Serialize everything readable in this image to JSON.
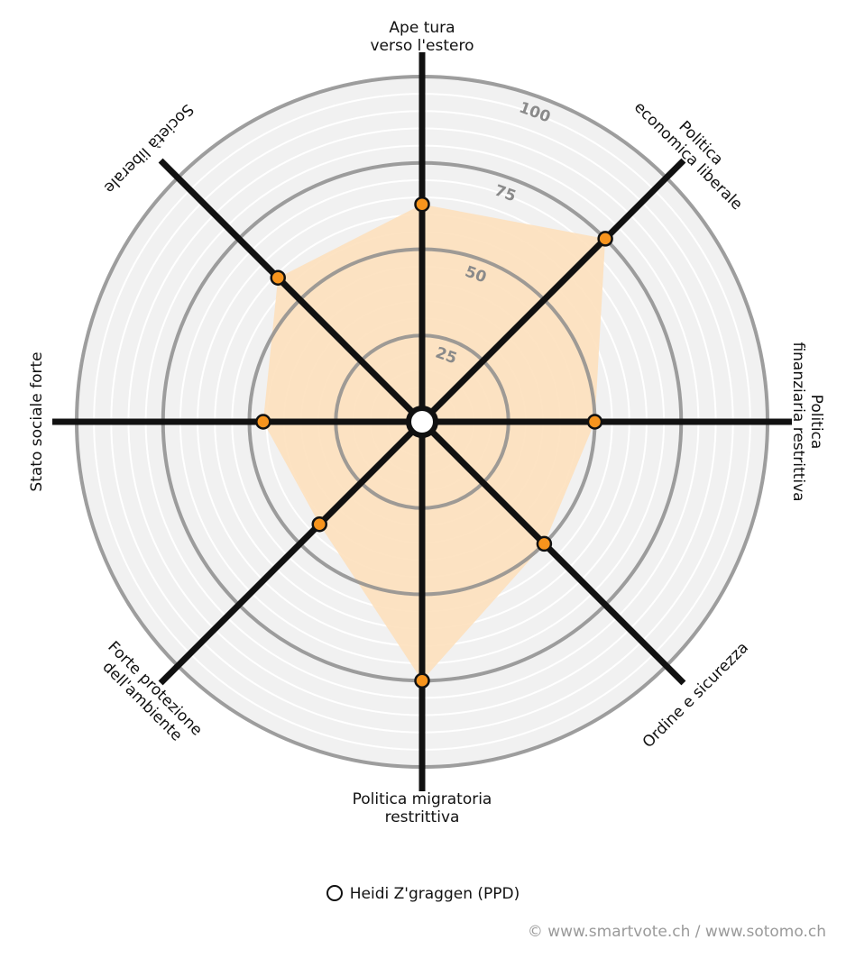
{
  "chart_data": {
    "type": "radar",
    "axes": [
      "Ape tura\nverso l'estero",
      "Politica\neconomica liberale",
      "Politica\nfinanziaria restrittiva",
      "Ordine e sicurezza",
      "Politica migratoria\nrestrittiva",
      "Forte protezione\ndell'ambiente",
      "Stato sociale forte",
      "Società liberale"
    ],
    "rlim": [
      0,
      100
    ],
    "ticks": [
      25,
      50,
      75,
      100
    ],
    "series": [
      {
        "name": "Heidi Z'graggen (PPD)",
        "values": [
          63,
          75,
          50,
          50,
          75,
          42,
          46,
          59
        ],
        "color": "#f7941d",
        "fill": "#fde0bd"
      }
    ]
  },
  "legend": {
    "label": "Heidi Z'graggen (PPD)"
  },
  "footer": {
    "credit": "© www.smartvote.ch / www.sotomo.ch"
  }
}
